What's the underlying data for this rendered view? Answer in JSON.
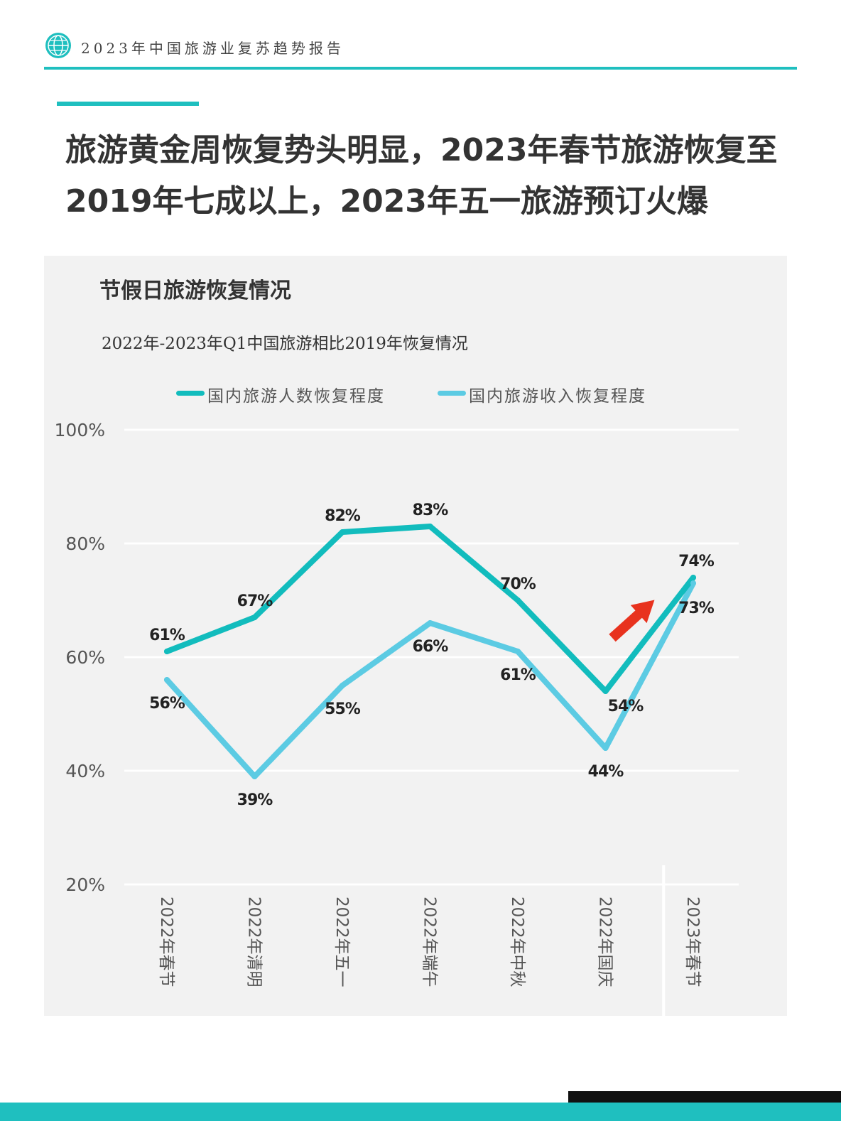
{
  "header": {
    "report_title": "2023年中国旅游业复苏趋势报告",
    "logo_icon": "globe-icon"
  },
  "headline": {
    "line1": "旅游黄金周恢复势头明显，2023年春节旅游恢复至",
    "line2": "2019年七成以上，2023年五一旅游预订火爆"
  },
  "panel": {
    "title": "节假日旅游恢复情况"
  },
  "colors": {
    "accent": "#1fbfbf",
    "series_visitors": "#12bcbd",
    "series_revenue": "#5ccbe3",
    "trend_arrow": "#e8321e",
    "panel_bg": "#f2f2f2"
  },
  "chart_data": {
    "type": "line",
    "title": "2022年-2023年Q1中国旅游相比2019年恢复情况",
    "categories": [
      "2022年春节",
      "2022年清明",
      "2022年五一",
      "2022年端午",
      "2022年中秋",
      "2022年国庆",
      "2023年春节"
    ],
    "series": [
      {
        "name": "国内旅游人数恢复程度",
        "values": [
          61,
          67,
          82,
          83,
          70,
          54,
          74
        ],
        "labels": [
          "61%",
          "67%",
          "82%",
          "83%",
          "70%",
          "54%",
          "74%"
        ]
      },
      {
        "name": "国内旅游收入恢复程度",
        "values": [
          56,
          39,
          55,
          66,
          61,
          44,
          73
        ],
        "labels": [
          "56%",
          "39%",
          "55%",
          "66%",
          "61%",
          "44%",
          "73%"
        ]
      }
    ],
    "ylim": [
      20,
      100
    ],
    "yticks": [
      20,
      40,
      60,
      80,
      100
    ],
    "ytick_labels": [
      "20%",
      "40%",
      "60%",
      "80%",
      "100%"
    ],
    "grid": true,
    "legend_position": "top",
    "xlabel": "",
    "ylabel": ""
  }
}
